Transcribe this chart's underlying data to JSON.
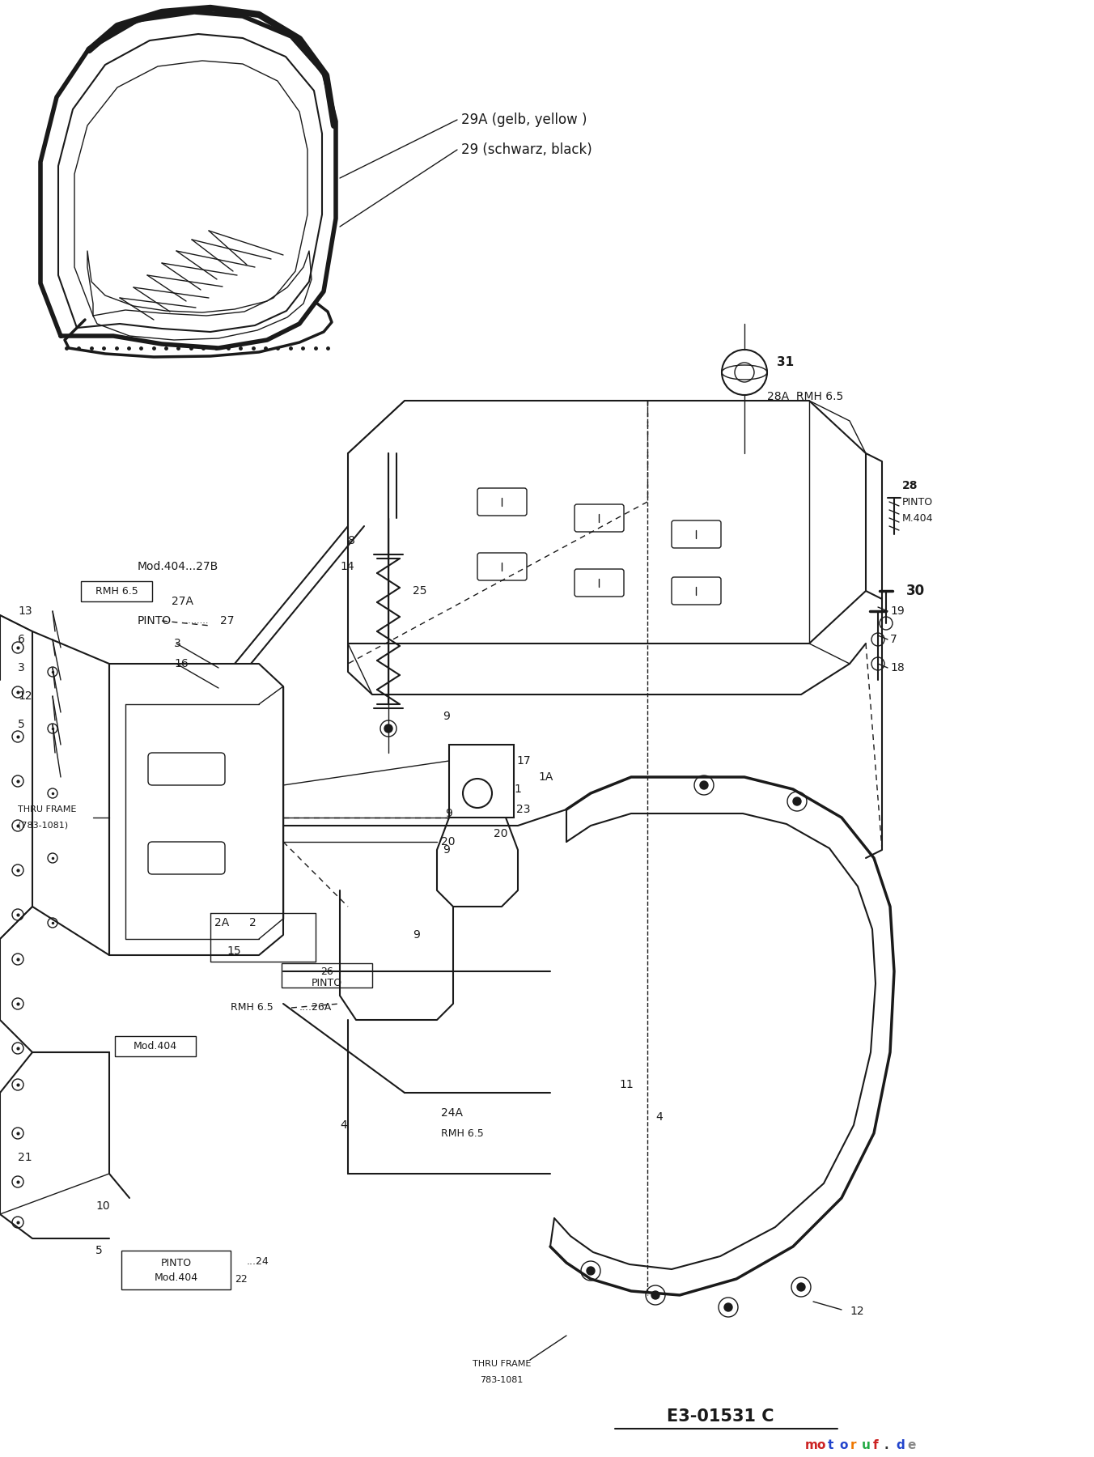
{
  "background_color": "#ffffff",
  "diagram_color": "#1a1a1a",
  "fig_width": 13.52,
  "fig_height": 18.0,
  "watermark_letters": [
    "m",
    "o",
    "t",
    "o",
    "r",
    "u",
    "f",
    ".",
    "d",
    "e"
  ],
  "watermark_colors": [
    "#cc2222",
    "#cc2222",
    "#2244cc",
    "#2244cc",
    "#ee7700",
    "#22aa44",
    "#cc2222",
    "#333333",
    "#2244cc",
    "#888888"
  ],
  "part_number": "E3-01531 C"
}
